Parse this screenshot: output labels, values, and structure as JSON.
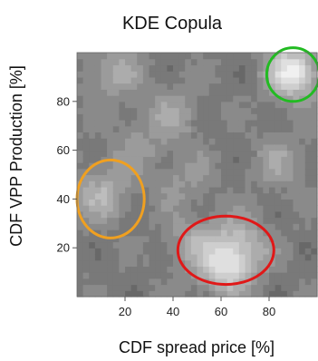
{
  "chart_data": {
    "type": "heatmap",
    "title": "KDE Copula",
    "xlabel": "CDF spread price [%]",
    "ylabel": "CDF VPP Production [%]",
    "xlim": [
      0,
      100
    ],
    "ylim": [
      0,
      100
    ],
    "xticks": [
      20,
      40,
      60,
      80
    ],
    "yticks": [
      20,
      40,
      60,
      80
    ],
    "x_tick_labels": [
      "20",
      "40",
      "60",
      "80"
    ],
    "y_tick_labels": [
      "20",
      "40",
      "60",
      "80"
    ],
    "grid": false,
    "colormap": "grayscale",
    "density_peaks": [
      {
        "x": 90,
        "y": 92,
        "density": 1.0
      },
      {
        "x": 62,
        "y": 12,
        "density": 0.78
      },
      {
        "x": 68,
        "y": 22,
        "density": 0.6
      },
      {
        "x": 48,
        "y": 22,
        "density": 0.52
      },
      {
        "x": 10,
        "y": 42,
        "density": 0.6
      },
      {
        "x": 15,
        "y": 92,
        "density": 0.55
      },
      {
        "x": 40,
        "y": 75,
        "density": 0.5
      },
      {
        "x": 85,
        "y": 55,
        "density": 0.5
      },
      {
        "x": 45,
        "y": 48,
        "density": 0.45
      },
      {
        "x": 25,
        "y": 62,
        "density": 0.45
      }
    ],
    "annotations": [
      {
        "shape": "ellipse",
        "color": "#22bb22",
        "center": [
          90,
          91
        ],
        "radius": [
          11,
          11
        ]
      },
      {
        "shape": "ellipse",
        "color": "#f0a020",
        "center": [
          14,
          40
        ],
        "radius": [
          14,
          16
        ]
      },
      {
        "shape": "ellipse",
        "color": "#e01818",
        "center": [
          62,
          19
        ],
        "radius": [
          20,
          14
        ]
      }
    ]
  }
}
